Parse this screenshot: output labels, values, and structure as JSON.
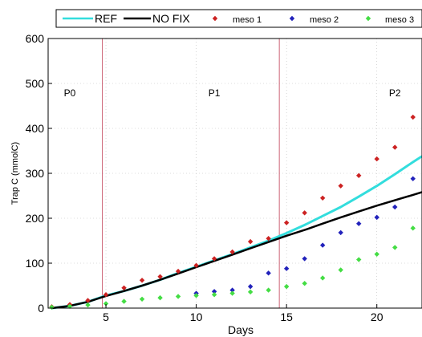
{
  "chart_data": {
    "type": "line",
    "title": "",
    "xlabel": "Days",
    "ylabel": "Trap C (mmolC)",
    "xlim": [
      1.8,
      22.5
    ],
    "ylim": [
      0,
      600
    ],
    "xticks": [
      5,
      10,
      15,
      20
    ],
    "yticks": [
      0,
      100,
      200,
      300,
      400,
      500,
      600
    ],
    "grid": true,
    "legend_position": "top",
    "phase_lines": [
      4.8,
      14.6
    ],
    "phases": [
      {
        "label": "P0",
        "x": 3.0,
        "y": 480
      },
      {
        "label": "P1",
        "x": 11.0,
        "y": 480
      },
      {
        "label": "P2",
        "x": 21.0,
        "y": 480
      }
    ],
    "series": [
      {
        "name": "REF",
        "kind": "line",
        "color": "#33dddd",
        "points": [
          [
            2,
            0
          ],
          [
            3,
            5
          ],
          [
            4,
            14
          ],
          [
            5,
            28
          ],
          [
            6,
            38
          ],
          [
            7,
            50
          ],
          [
            8,
            63
          ],
          [
            9,
            78
          ],
          [
            10,
            92
          ],
          [
            11,
            106
          ],
          [
            12,
            120
          ],
          [
            13,
            135
          ],
          [
            14,
            150
          ],
          [
            15,
            167
          ],
          [
            16,
            185
          ],
          [
            17,
            205
          ],
          [
            18,
            225
          ],
          [
            19,
            248
          ],
          [
            20,
            272
          ],
          [
            21,
            298
          ],
          [
            22,
            325
          ],
          [
            22.5,
            338
          ]
        ]
      },
      {
        "name": "NO FIX",
        "kind": "line",
        "color": "#000000",
        "points": [
          [
            2,
            0
          ],
          [
            3,
            5
          ],
          [
            4,
            14
          ],
          [
            5,
            27
          ],
          [
            6,
            38
          ],
          [
            7,
            50
          ],
          [
            8,
            63
          ],
          [
            9,
            77
          ],
          [
            10,
            91
          ],
          [
            11,
            105
          ],
          [
            12,
            119
          ],
          [
            13,
            133
          ],
          [
            14,
            147
          ],
          [
            15,
            161
          ],
          [
            16,
            174
          ],
          [
            17,
            188
          ],
          [
            18,
            202
          ],
          [
            19,
            215
          ],
          [
            20,
            228
          ],
          [
            21,
            240
          ],
          [
            22,
            252
          ],
          [
            22.5,
            258
          ]
        ]
      },
      {
        "name": "meso 1",
        "kind": "scatter",
        "color": "#cc2222",
        "points": [
          [
            2,
            3
          ],
          [
            3,
            8
          ],
          [
            4,
            17
          ],
          [
            5,
            30
          ],
          [
            6,
            45
          ],
          [
            7,
            62
          ],
          [
            8,
            70
          ],
          [
            9,
            82
          ],
          [
            10,
            95
          ],
          [
            11,
            110
          ],
          [
            12,
            125
          ],
          [
            13,
            148
          ],
          [
            14,
            155
          ],
          [
            15,
            190
          ],
          [
            16,
            212
          ],
          [
            17,
            245
          ],
          [
            18,
            272
          ],
          [
            19,
            295
          ],
          [
            20,
            332
          ],
          [
            21,
            358
          ],
          [
            22,
            425
          ]
        ]
      },
      {
        "name": "meso 2",
        "kind": "scatter",
        "color": "#2222bb",
        "points": [
          [
            10,
            33
          ],
          [
            11,
            37
          ],
          [
            12,
            40
          ],
          [
            13,
            48
          ],
          [
            14,
            78
          ],
          [
            15,
            88
          ],
          [
            16,
            110
          ],
          [
            17,
            140
          ],
          [
            18,
            168
          ],
          [
            19,
            188
          ],
          [
            20,
            202
          ],
          [
            21,
            225
          ],
          [
            22,
            288
          ]
        ]
      },
      {
        "name": "meso 3",
        "kind": "scatter",
        "color": "#44dd44",
        "points": [
          [
            2,
            2
          ],
          [
            3,
            4
          ],
          [
            4,
            7
          ],
          [
            5,
            10
          ],
          [
            6,
            15
          ],
          [
            7,
            20
          ],
          [
            8,
            23
          ],
          [
            9,
            26
          ],
          [
            10,
            28
          ],
          [
            11,
            30
          ],
          [
            12,
            33
          ],
          [
            13,
            36
          ],
          [
            14,
            40
          ],
          [
            15,
            48
          ],
          [
            16,
            55
          ],
          [
            17,
            67
          ],
          [
            18,
            85
          ],
          [
            19,
            108
          ],
          [
            20,
            120
          ],
          [
            21,
            135
          ],
          [
            22,
            178
          ]
        ]
      }
    ]
  }
}
